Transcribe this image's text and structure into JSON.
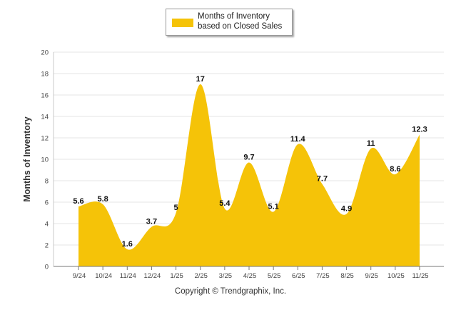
{
  "chart_data": {
    "type": "area",
    "categories": [
      "9/24",
      "10/24",
      "11/24",
      "12/24",
      "1/25",
      "2/25",
      "3/25",
      "4/25",
      "5/25",
      "6/25",
      "7/25",
      "8/25",
      "9/25",
      "10/25",
      "11/25"
    ],
    "series": [
      {
        "name": "Months of Inventory based on Closed Sales",
        "values": [
          5.6,
          5.8,
          1.6,
          3.7,
          5,
          17,
          5.4,
          9.7,
          5.1,
          11.4,
          7.7,
          4.9,
          11,
          8.6,
          12.3
        ]
      }
    ],
    "data_labels": [
      "5.6",
      "5.8",
      "1.6",
      "3.7",
      "5",
      "17",
      "5.4",
      "9.7",
      "5.1",
      "11.4",
      "7.7",
      "4.9",
      "11",
      "8.6",
      "12.3"
    ],
    "ylabel": "Months of Inventory",
    "xlabel": "",
    "ylim": [
      0,
      20
    ],
    "yticks": [
      "0",
      "2",
      "4",
      "6",
      "8",
      "10",
      "12",
      "14",
      "16",
      "18",
      "20"
    ],
    "grid": true,
    "legend": "top-center",
    "colors": {
      "fill": "#F5C308",
      "grid": "#e6e6e6",
      "axis": "#666666"
    }
  },
  "legend": {
    "label": "Months of Inventory based on Closed Sales"
  },
  "footer": {
    "copyright": "Copyright © Trendgraphix, Inc."
  }
}
